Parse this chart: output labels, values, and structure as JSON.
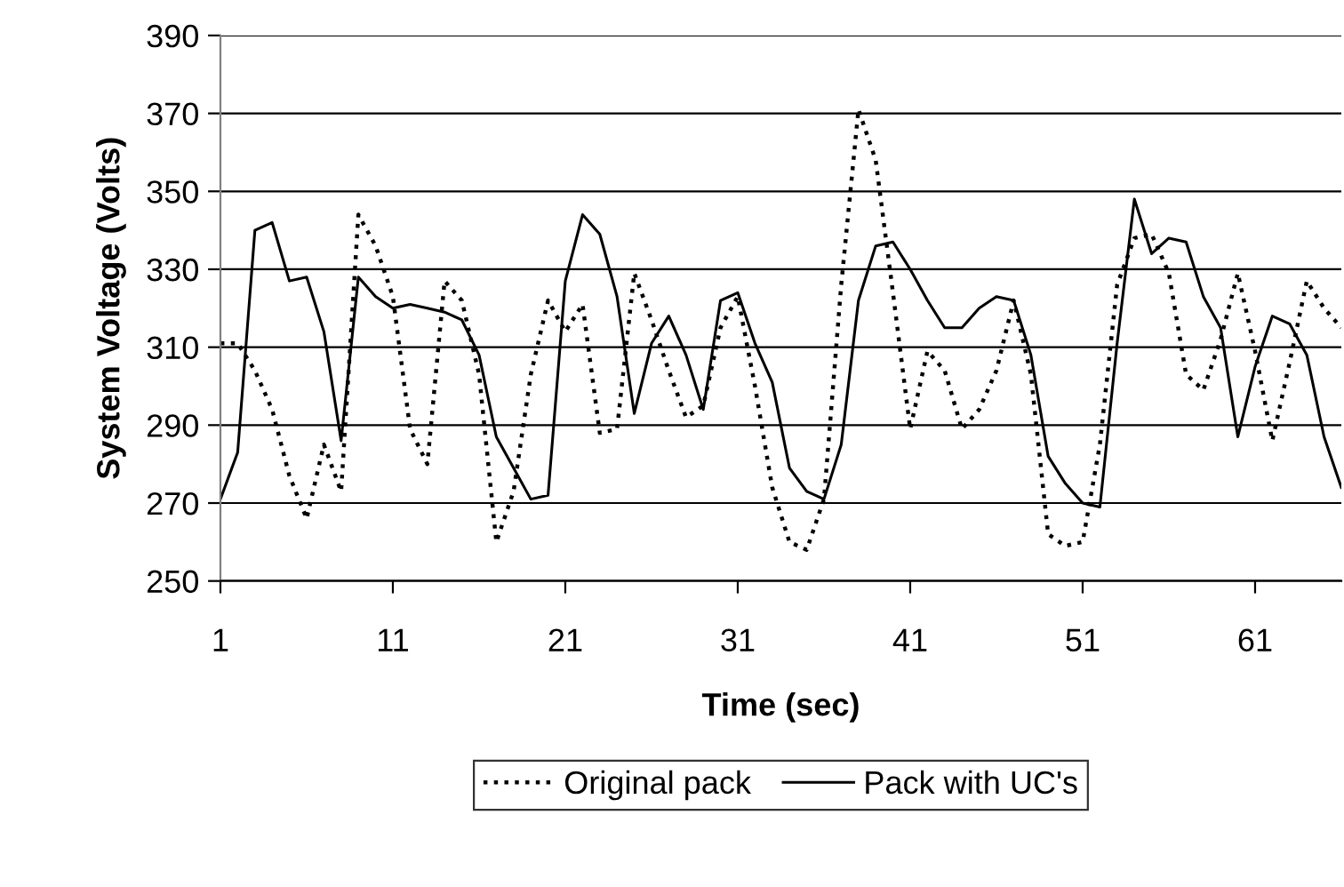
{
  "chart_data": {
    "type": "line",
    "xlabel": "Time (sec)",
    "ylabel": "System Voltage (Volts)",
    "x": [
      1,
      2,
      3,
      4,
      5,
      6,
      7,
      8,
      9,
      10,
      11,
      12,
      13,
      14,
      15,
      16,
      17,
      18,
      19,
      20,
      21,
      22,
      23,
      24,
      25,
      26,
      27,
      28,
      29,
      30,
      31,
      32,
      33,
      34,
      35,
      36,
      37,
      38,
      39,
      40,
      41,
      42,
      43,
      44,
      45,
      46,
      47,
      48,
      49,
      50,
      51,
      52,
      53,
      54,
      55,
      56,
      57,
      58,
      59,
      60,
      61,
      62,
      63,
      64,
      65,
      66
    ],
    "xlim": [
      1,
      66
    ],
    "xticks": [
      1,
      11,
      21,
      31,
      41,
      51,
      61
    ],
    "ylim": [
      250,
      390
    ],
    "yticks": [
      250,
      270,
      290,
      310,
      330,
      350,
      370,
      390
    ],
    "grid": "y",
    "legend": "bottom",
    "marker": "none",
    "series": [
      {
        "name": "Original pack",
        "color": "#000000",
        "line_style": "dotted",
        "values": [
          311,
          311,
          304,
          294,
          277,
          266,
          285,
          273,
          344,
          336,
          323,
          289,
          280,
          327,
          322,
          303,
          260,
          273,
          303,
          322,
          314,
          321,
          288,
          289,
          329,
          317,
          304,
          292,
          295,
          315,
          323,
          300,
          274,
          260,
          258,
          271,
          326,
          371,
          358,
          324,
          289,
          309,
          304,
          289,
          294,
          304,
          322,
          303,
          262,
          259,
          260,
          285,
          326,
          338,
          339,
          329,
          303,
          299,
          312,
          329,
          309,
          286,
          306,
          327,
          320,
          315
        ]
      },
      {
        "name": "Pack with UC's",
        "color": "#000000",
        "line_style": "solid",
        "values": [
          271,
          283,
          340,
          342,
          327,
          328,
          314,
          286,
          328,
          323,
          320,
          321,
          320,
          319,
          317,
          308,
          287,
          279,
          271,
          272,
          327,
          344,
          339,
          323,
          293,
          311,
          318,
          308,
          294,
          322,
          324,
          311,
          301,
          279,
          273,
          271,
          285,
          322,
          336,
          337,
          330,
          322,
          315,
          315,
          320,
          323,
          322,
          308,
          282,
          275,
          270,
          269,
          311,
          348,
          334,
          338,
          337,
          323,
          315,
          287,
          305,
          318,
          316,
          308,
          287,
          274
        ]
      }
    ]
  }
}
